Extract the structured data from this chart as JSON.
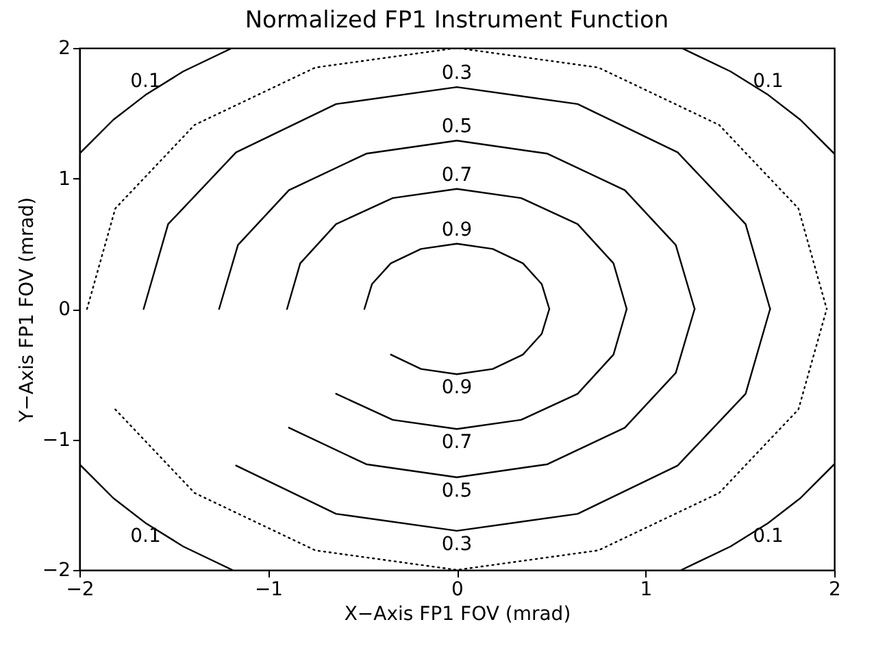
{
  "chart_data": {
    "type": "line",
    "title": "Normalized FP1 Instrument Function",
    "xlabel": "X−Axis FP1 FOV (mrad)",
    "ylabel": "Y−Axis FP1 FOV (mrad)",
    "xlim": [
      -2,
      2
    ],
    "ylim": [
      -2,
      2
    ],
    "xticks": [
      -2,
      -1,
      0,
      1,
      2
    ],
    "yticks": [
      -2,
      -1,
      0,
      1,
      2
    ],
    "legend": false,
    "grid": false,
    "marker": "none",
    "series": [
      {
        "name": "0.9",
        "color": "#000000",
        "line_style": "solid",
        "x": [
          -0.49,
          -0.45,
          -0.35,
          -0.19,
          0,
          0.19,
          0.35,
          0.45,
          0.49
        ],
        "values": [
          0,
          0.19,
          0.35,
          0.46,
          0.5,
          0.46,
          0.35,
          0.19,
          0
        ]
      },
      {
        "name": "0.9",
        "color": "#000000",
        "line_style": "solid",
        "x": [
          -0.35,
          -0.19,
          0,
          0.19,
          0.35,
          0.45,
          0.49
        ],
        "values": [
          -0.35,
          -0.46,
          -0.5,
          -0.46,
          -0.35,
          -0.19,
          0
        ]
      },
      {
        "name": "0.7",
        "color": "#000000",
        "line_style": "solid",
        "x": [
          -0.9,
          -0.83,
          -0.64,
          -0.34,
          0,
          0.34,
          0.64,
          0.83,
          0.9
        ],
        "values": [
          0,
          0.35,
          0.65,
          0.85,
          0.92,
          0.85,
          0.65,
          0.35,
          0
        ]
      },
      {
        "name": "0.7",
        "color": "#000000",
        "line_style": "solid",
        "x": [
          -0.64,
          -0.34,
          0,
          0.34,
          0.64,
          0.83,
          0.9
        ],
        "values": [
          -0.65,
          -0.85,
          -0.92,
          -0.85,
          -0.65,
          -0.35,
          0
        ]
      },
      {
        "name": "0.5",
        "color": "#000000",
        "line_style": "solid",
        "x": [
          -1.26,
          -1.16,
          -0.89,
          -0.48,
          0,
          0.48,
          0.89,
          1.16,
          1.26
        ],
        "values": [
          0,
          0.49,
          0.91,
          1.19,
          1.29,
          1.19,
          0.91,
          0.49,
          0
        ]
      },
      {
        "name": "0.5",
        "color": "#000000",
        "line_style": "solid",
        "x": [
          -0.89,
          -0.48,
          0,
          0.48,
          0.89,
          1.16,
          1.26
        ],
        "values": [
          -0.91,
          -1.19,
          -1.29,
          -1.19,
          -0.91,
          -0.49,
          0
        ]
      },
      {
        "name": "0.3",
        "color": "#000000",
        "line_style": "solid",
        "x": [
          -1.66,
          -1.53,
          -1.17,
          -0.64,
          0,
          0.64,
          1.17,
          1.53,
          1.66
        ],
        "values": [
          0,
          0.65,
          1.2,
          1.57,
          1.7,
          1.57,
          1.2,
          0.65,
          0
        ]
      },
      {
        "name": "0.3",
        "color": "#000000",
        "line_style": "solid",
        "x": [
          -1.17,
          -0.64,
          0,
          0.64,
          1.17,
          1.53,
          1.66
        ],
        "values": [
          -1.2,
          -1.57,
          -1.7,
          -1.57,
          -1.2,
          -0.65,
          0
        ]
      },
      {
        "name": "0.1",
        "color": "#000000",
        "line_style": "solid",
        "x": [
          -2.0,
          -1.82,
          -1.65,
          -1.45,
          -1.19
        ],
        "values": [
          1.19,
          1.45,
          1.64,
          1.82,
          2.0
        ]
      },
      {
        "name": "0.1",
        "color": "#000000",
        "line_style": "solid",
        "x": [
          1.19,
          1.45,
          1.65,
          1.82,
          2.0
        ],
        "values": [
          2.0,
          1.82,
          1.64,
          1.45,
          1.19
        ]
      },
      {
        "name": "0.1",
        "color": "#000000",
        "line_style": "solid",
        "x": [
          -2.0,
          -1.82,
          -1.65,
          -1.45,
          -1.19
        ],
        "values": [
          -1.19,
          -1.45,
          -1.64,
          -1.82,
          -2.0
        ]
      },
      {
        "name": "0.1",
        "color": "#000000",
        "line_style": "solid",
        "x": [
          1.19,
          1.45,
          1.65,
          1.82,
          2.0
        ],
        "values": [
          -2.0,
          -1.82,
          -1.64,
          -1.45,
          -1.19
        ]
      },
      {
        "color": "#000000",
        "line_style": "dotted",
        "x": [
          -1.96,
          -1.81,
          -1.39,
          -0.75,
          0,
          0.75,
          1.39,
          1.81,
          1.96
        ],
        "values": [
          0,
          0.77,
          1.41,
          1.85,
          2.0,
          1.85,
          1.41,
          0.77,
          0
        ]
      },
      {
        "color": "#000000",
        "line_style": "dotted",
        "x": [
          -1.81,
          -1.39,
          -0.75,
          0,
          0.75,
          1.39,
          1.81,
          1.96
        ],
        "values": [
          -0.77,
          -1.41,
          -1.85,
          -2.0,
          -1.85,
          -1.41,
          -0.77,
          0
        ]
      }
    ]
  }
}
